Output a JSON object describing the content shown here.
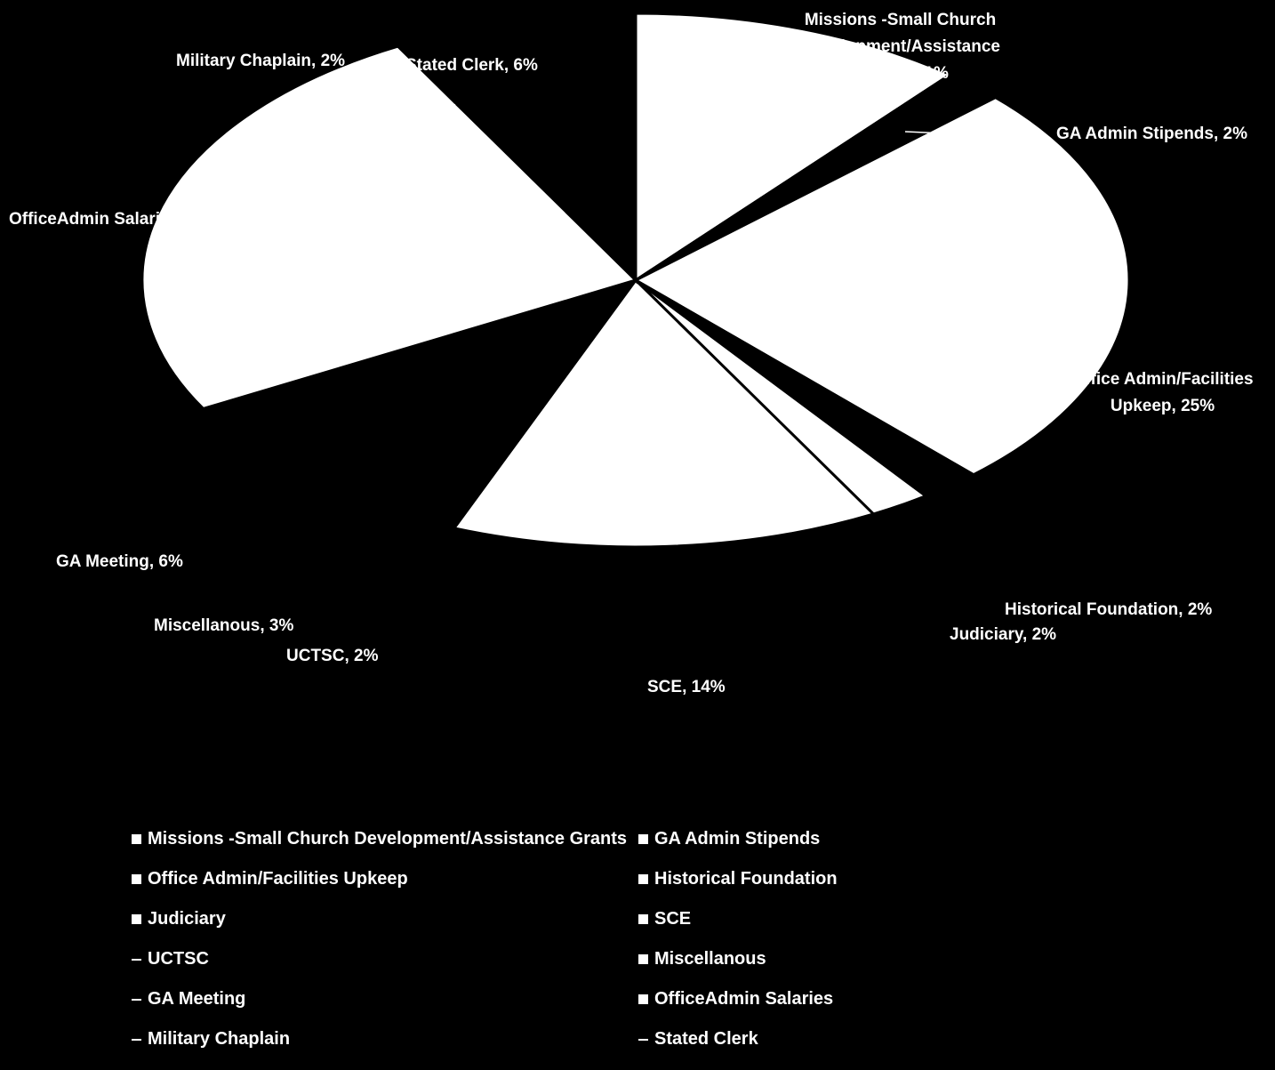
{
  "chart_data": {
    "type": "pie",
    "title": "",
    "slices": [
      {
        "label": "Missions -Small Church Development/Assistance Grants",
        "percent": 11,
        "data_label": "Missions -Small Church Development/Assistance Grants, 11%"
      },
      {
        "label": "GA Admin Stipends",
        "percent": 2,
        "data_label": "GA Admin Stipends, 2%"
      },
      {
        "label": "Office Admin/Facilities Upkeep",
        "percent": 25,
        "data_label": "Office Admin/Facilities Upkeep, 25%"
      },
      {
        "label": "Historical Foundation",
        "percent": 2,
        "data_label": "Historical Foundation, 2%"
      },
      {
        "label": "Judiciary",
        "percent": 2,
        "data_label": "Judiciary, 2%"
      },
      {
        "label": "SCE",
        "percent": 14,
        "data_label": "SCE, 14%"
      },
      {
        "label": "UCTSC",
        "percent": 2,
        "data_label": "UCTSC, 2%"
      },
      {
        "label": "Miscellanous",
        "percent": 3,
        "data_label": "Miscellanous, 3%"
      },
      {
        "label": "GA Meeting",
        "percent": 6,
        "data_label": "GA Meeting, 6%"
      },
      {
        "label": "OfficeAdmin Salaries",
        "percent": 25,
        "data_label": "OfficeAdmin Salaries, 25%"
      },
      {
        "label": "Military Chaplain",
        "percent": 2,
        "data_label": "Military Chaplain, 2%"
      },
      {
        "label": "Stated Clerk",
        "percent": 6,
        "data_label": "Stated Clerk, 6%"
      }
    ],
    "slice_colors": [
      "#ffffff",
      "#000000",
      "#ffffff",
      "#000000",
      "#ffffff",
      "#ffffff",
      "#000000",
      "#000000",
      "#000000",
      "#ffffff",
      "#000000",
      "#000000"
    ],
    "legend_position": "bottom",
    "legend": [
      "Missions -Small Church Development/Assistance Grants",
      "GA Admin Stipends",
      "Office Admin/Facilities Upkeep",
      "Historical Foundation",
      "Judiciary",
      "SCE",
      "UCTSC",
      "Miscellanous",
      "GA Meeting",
      "OfficeAdmin Salaries",
      "Military Chaplain",
      "Stated Clerk"
    ]
  },
  "colors": {
    "background": "#000000",
    "foreground": "#ffffff"
  }
}
